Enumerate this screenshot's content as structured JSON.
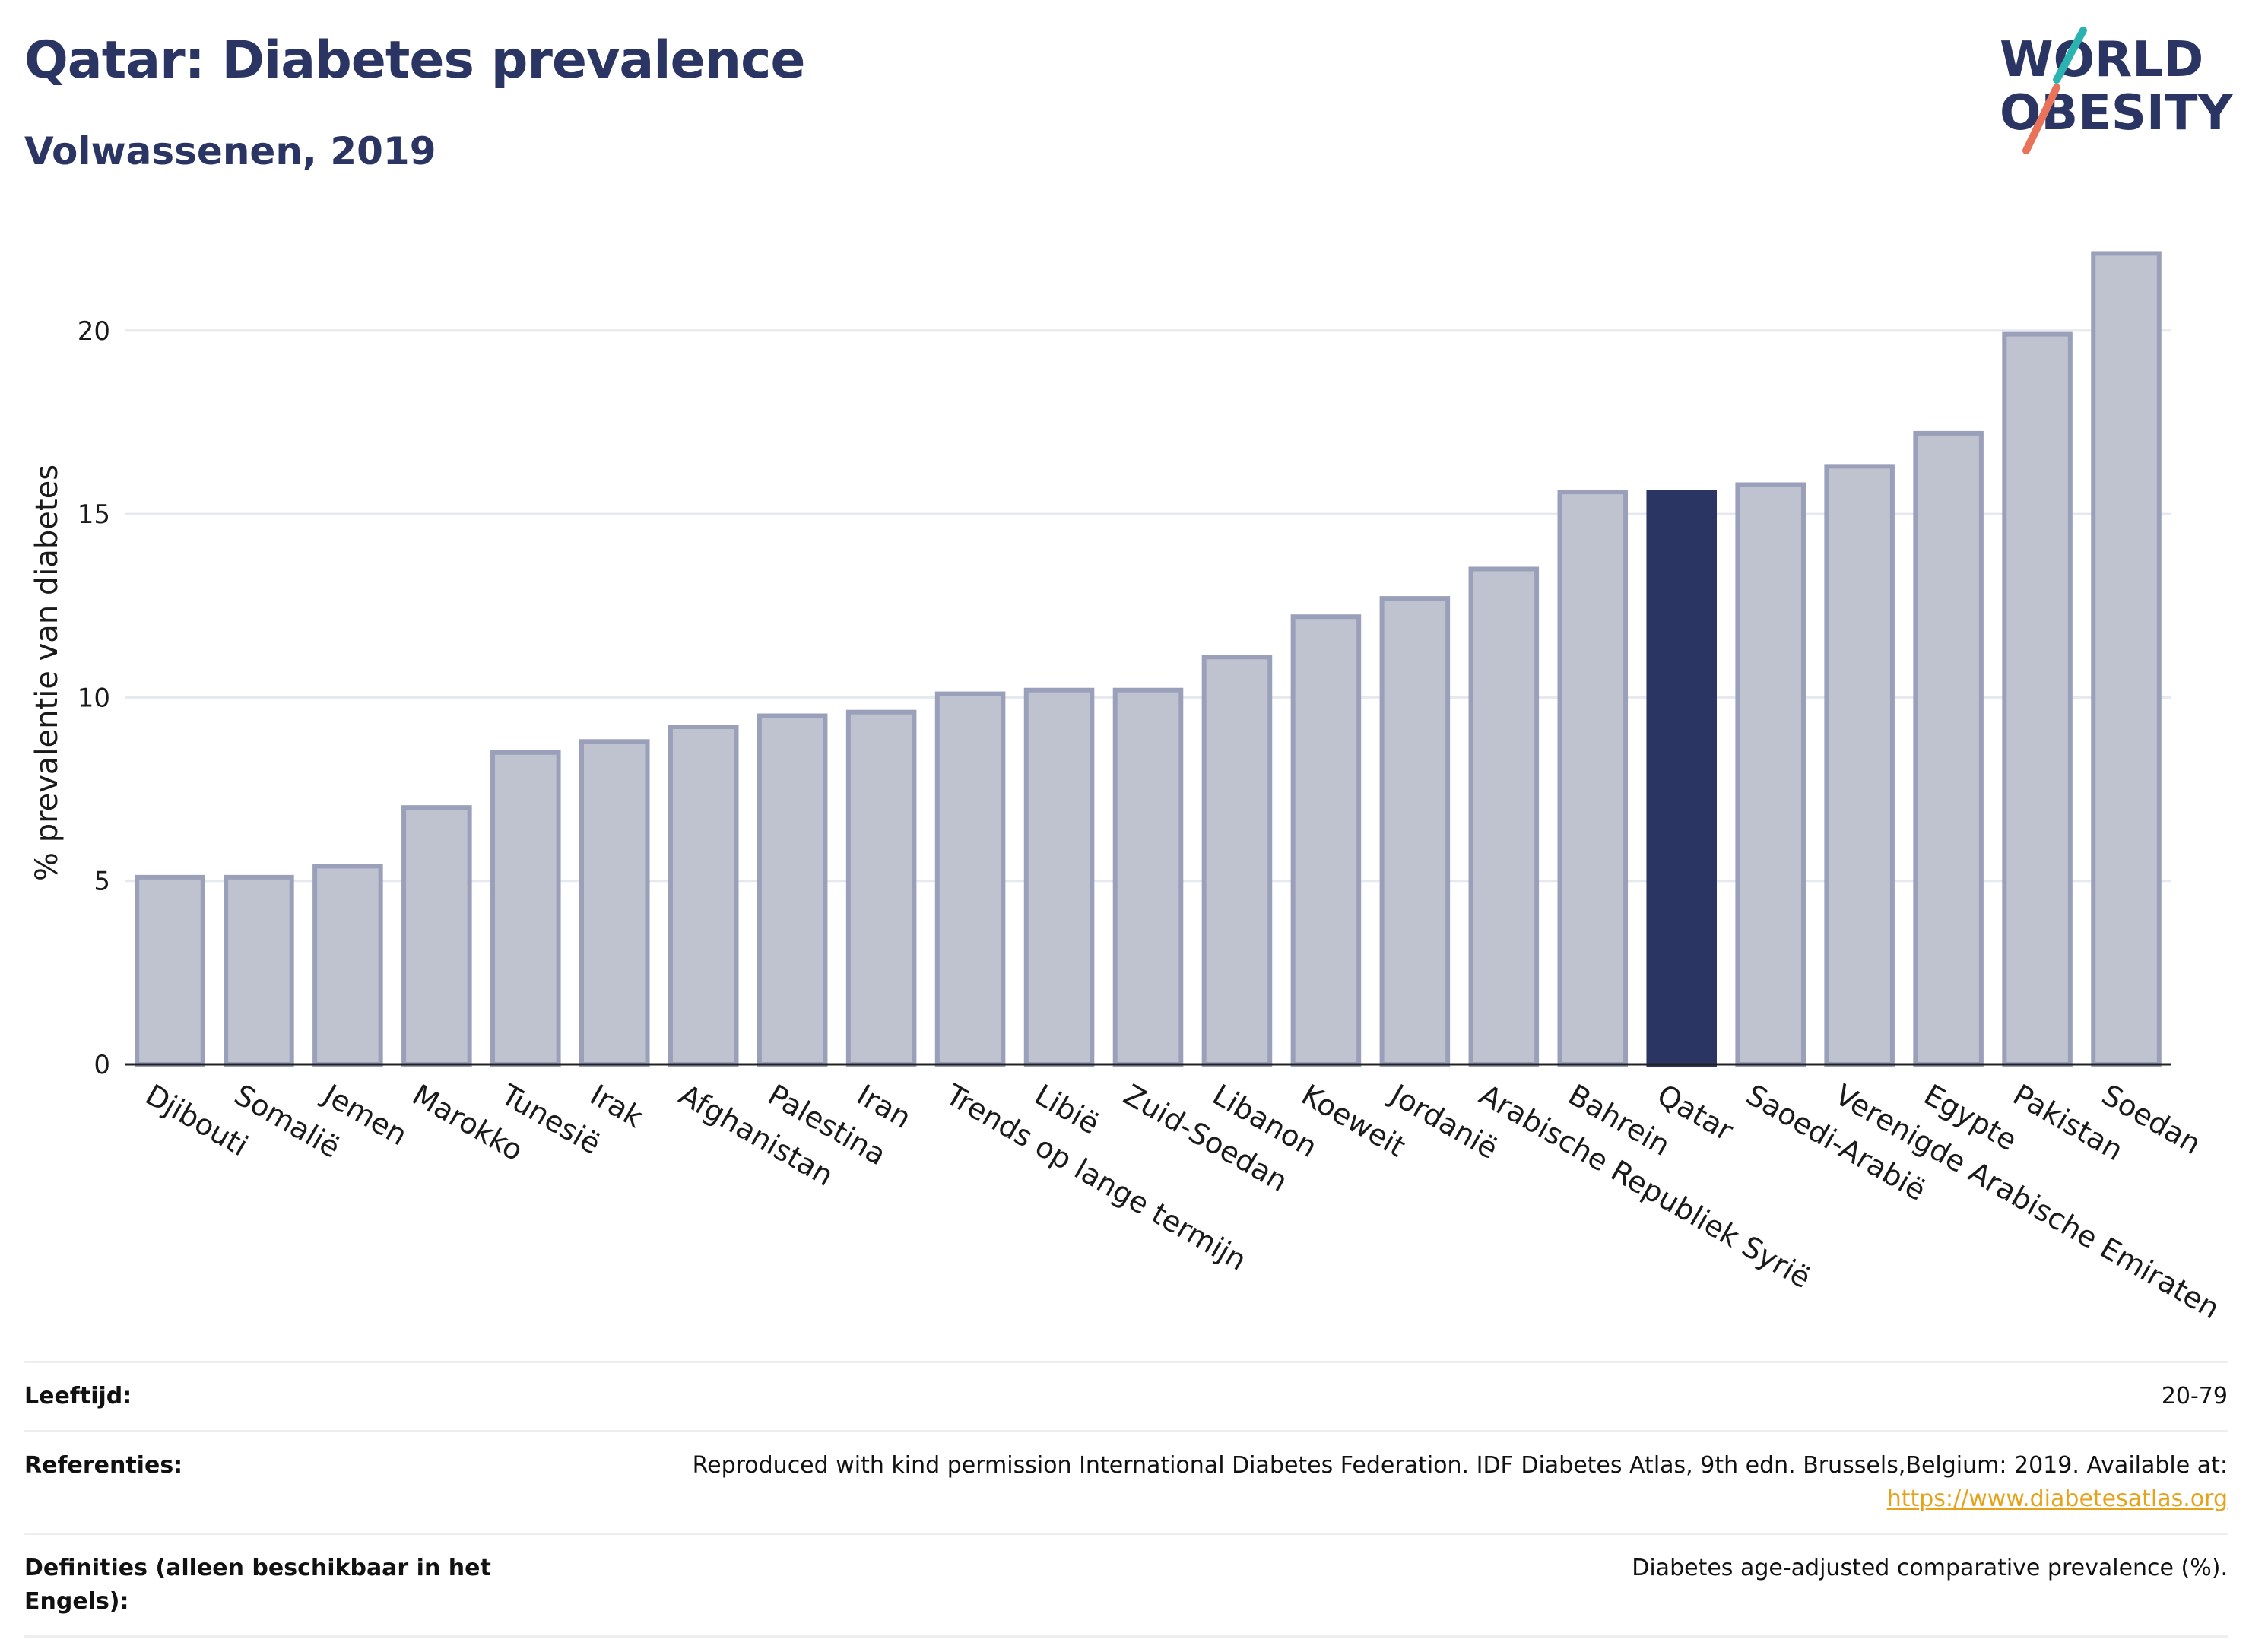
{
  "header": {
    "title": "Qatar: Diabetes prevalence",
    "subtitle": "Volwassenen, 2019",
    "logo_line1": "WORLD",
    "logo_line2": "OBESITY"
  },
  "colors": {
    "title": "#2b3563",
    "bar_fill": "#bfc3d0",
    "bar_stroke": "#9aa0b9",
    "highlight": "#2b3563",
    "logo_teal": "#2bb3b1",
    "logo_coral": "#e8735a",
    "link": "#e6a21b"
  },
  "chart_data": {
    "type": "bar",
    "ylabel": "% prevalentie van diabetes",
    "ylim": [
      0,
      23
    ],
    "yticks": [
      0,
      5,
      10,
      15,
      20
    ],
    "grid": true,
    "highlight_category": "Qatar",
    "categories": [
      "Djibouti",
      "Somalië",
      "Jemen",
      "Marokko",
      "Tunesië",
      "Irak",
      "Afghanistan",
      "Palestina",
      "Iran",
      "Trends op lange termijn",
      "Libië",
      "Zuid-Soedan",
      "Libanon",
      "Koeweit",
      "Jordanië",
      "Arabische Republiek Syrië",
      "Bahrein",
      "Qatar",
      "Saoedi-Arabië",
      "Verenigde Arabische Emiraten",
      "Egypte",
      "Pakistan",
      "Soedan"
    ],
    "values": [
      5.1,
      5.1,
      5.4,
      7.0,
      8.5,
      8.8,
      9.2,
      9.5,
      9.6,
      10.1,
      10.2,
      10.2,
      11.1,
      12.2,
      12.7,
      13.5,
      15.6,
      15.6,
      15.8,
      16.3,
      17.2,
      19.9,
      22.1
    ]
  },
  "footer": {
    "age_label": "Leeftijd:",
    "age_value": "20-79",
    "ref_label": "Referenties:",
    "ref_text": "Reproduced with kind permission International Diabetes Federation. IDF Diabetes Atlas, 9th edn. Brussels,Belgium: 2019. Available at:",
    "ref_link": "https://www.diabetesatlas.org",
    "def_label": "Definities (alleen beschikbaar in het Engels):",
    "def_value": "Diabetes age-adjusted comparative prevalence (%)."
  }
}
